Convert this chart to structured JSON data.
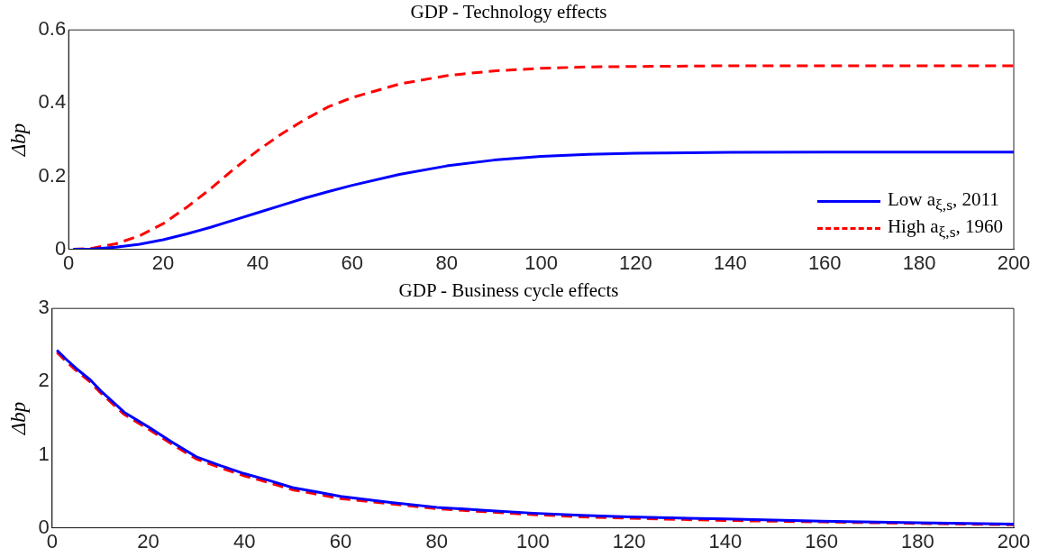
{
  "chart_data": [
    {
      "type": "line",
      "title": "GDP - Technology effects",
      "ylabel": "Δbp",
      "xlim": [
        0,
        200
      ],
      "xticks": [
        0,
        20,
        40,
        60,
        80,
        100,
        120,
        140,
        160,
        180,
        200
      ],
      "ylim": [
        0,
        0.6
      ],
      "yticks": [
        0,
        0.2,
        0.4,
        0.6
      ],
      "grid": false,
      "marker": "none",
      "legend": "bottom right",
      "series": [
        {
          "name": "Low a$_{ξ,s}$, 2011",
          "color": "#0000ff",
          "line_style": "solid",
          "x": [
            1,
            5,
            10,
            15,
            20,
            25,
            30,
            35,
            40,
            45,
            50,
            55,
            60,
            70,
            80,
            90,
            100,
            110,
            120,
            140,
            160,
            180,
            200
          ],
          "values": [
            0,
            0.001,
            0.006,
            0.014,
            0.026,
            0.042,
            0.06,
            0.08,
            0.1,
            0.12,
            0.14,
            0.158,
            0.175,
            0.205,
            0.228,
            0.244,
            0.254,
            0.26,
            0.263,
            0.265,
            0.266,
            0.266,
            0.266
          ]
        },
        {
          "name": "High a$_{ξ,s}$, 1960",
          "color": "#ff0000",
          "line_style": "dashed",
          "x": [
            1,
            5,
            10,
            15,
            20,
            25,
            30,
            35,
            40,
            45,
            50,
            55,
            60,
            70,
            80,
            90,
            100,
            110,
            120,
            140,
            160,
            180,
            200
          ],
          "values": [
            0,
            0.003,
            0.015,
            0.037,
            0.07,
            0.115,
            0.165,
            0.22,
            0.27,
            0.315,
            0.355,
            0.39,
            0.415,
            0.452,
            0.475,
            0.488,
            0.495,
            0.499,
            0.5,
            0.502,
            0.502,
            0.502,
            0.502
          ]
        }
      ]
    },
    {
      "type": "line",
      "title": "GDP - Business cycle effects",
      "ylabel": "Δbp",
      "xlim": [
        0,
        200
      ],
      "xticks": [
        0,
        20,
        40,
        60,
        80,
        100,
        120,
        140,
        160,
        180,
        200
      ],
      "ylim": [
        0,
        3
      ],
      "yticks": [
        0,
        1,
        2,
        3
      ],
      "grid": false,
      "marker": "none",
      "series": [
        {
          "color": "#0000ff",
          "line_style": "solid",
          "x": [
            1,
            3,
            5,
            8,
            10,
            13,
            15,
            20,
            25,
            30,
            35,
            40,
            45,
            50,
            55,
            60,
            70,
            80,
            90,
            100,
            110,
            120,
            140,
            160,
            180,
            200
          ],
          "values": [
            2.43,
            2.3,
            2.18,
            2.02,
            1.88,
            1.7,
            1.58,
            1.38,
            1.17,
            0.97,
            0.85,
            0.74,
            0.65,
            0.55,
            0.49,
            0.43,
            0.35,
            0.28,
            0.24,
            0.2,
            0.17,
            0.15,
            0.12,
            0.09,
            0.07,
            0.05
          ]
        },
        {
          "color": "#ff0000",
          "line_style": "dashed",
          "x": [
            1,
            3,
            5,
            8,
            10,
            13,
            15,
            20,
            25,
            30,
            35,
            40,
            45,
            50,
            55,
            60,
            70,
            80,
            90,
            100,
            110,
            120,
            140,
            160,
            180,
            200
          ],
          "values": [
            2.4,
            2.27,
            2.15,
            1.99,
            1.85,
            1.67,
            1.55,
            1.35,
            1.14,
            0.94,
            0.82,
            0.71,
            0.62,
            0.52,
            0.46,
            0.4,
            0.33,
            0.26,
            0.22,
            0.18,
            0.15,
            0.13,
            0.1,
            0.08,
            0.06,
            0.04
          ]
        }
      ]
    }
  ]
}
